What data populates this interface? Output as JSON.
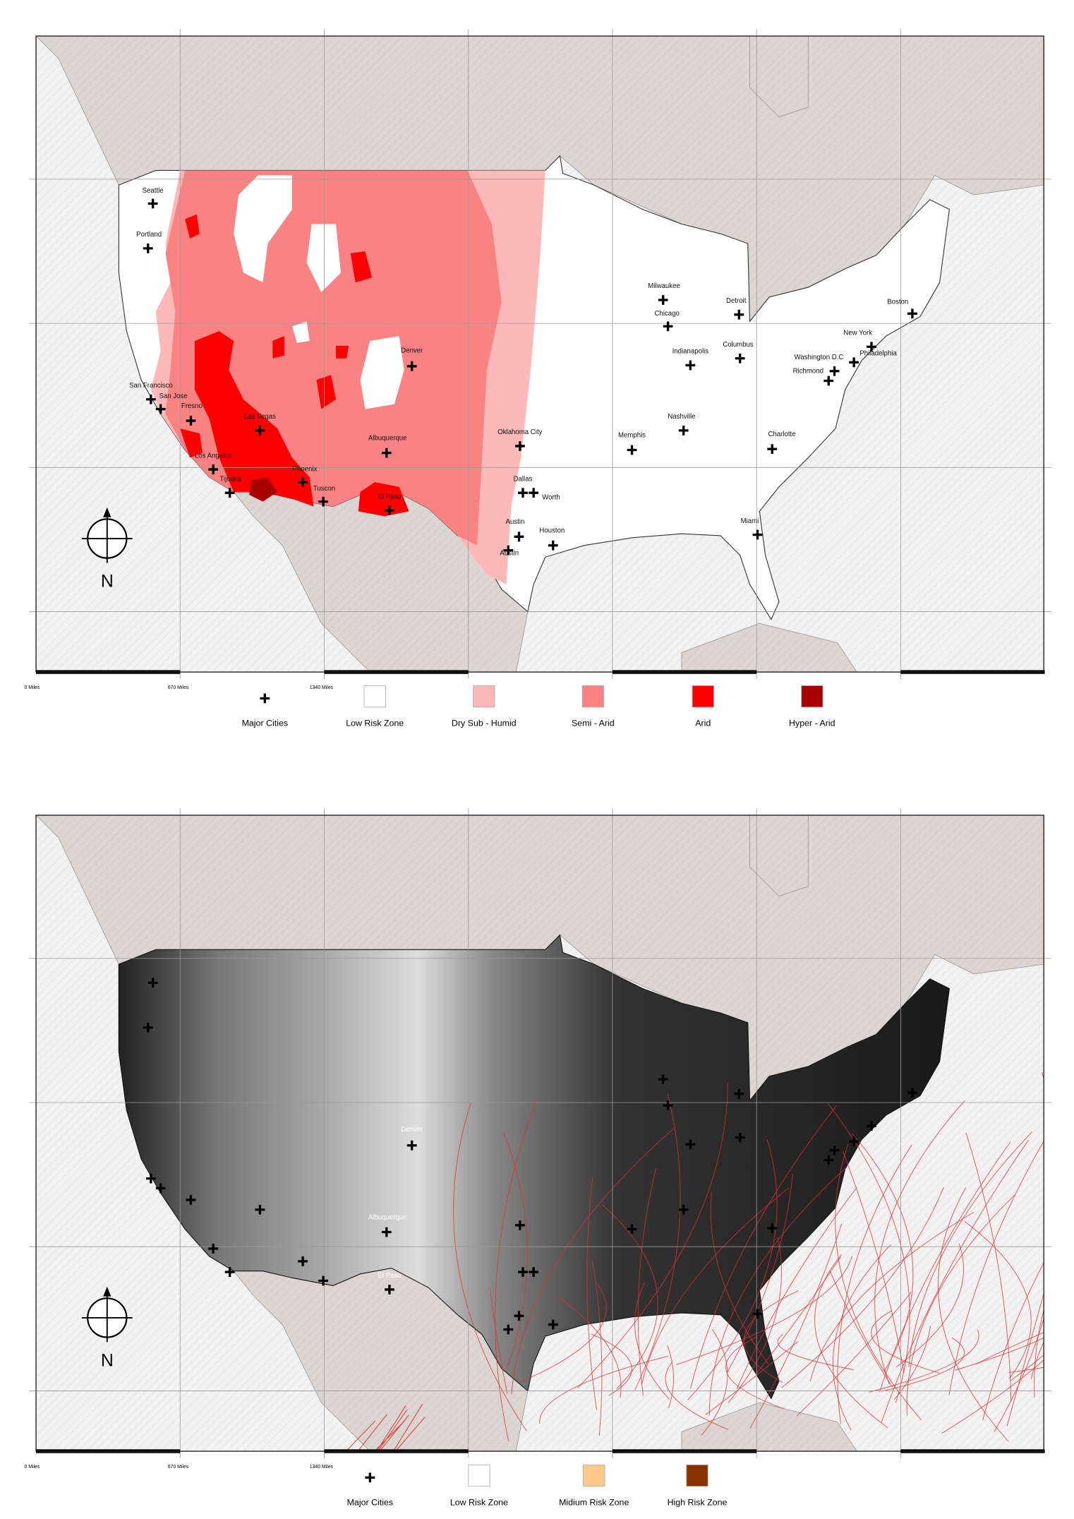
{
  "maps": [
    {
      "cities": [
        "Seattle",
        "Portland",
        "San Francisco",
        "San Jose",
        "Fresno",
        "Las Vegas",
        "Los Angeles",
        "Tijuana",
        "Phoenix",
        "Tuscon",
        "El Paso",
        "Albuquerque",
        "Denver",
        "Oklahoma City",
        "Dallas",
        "Worth",
        "Austin",
        "Austin",
        "Houston",
        "Memphis",
        "Nashville",
        "Milwaukee",
        "Chicago",
        "Indianapolis",
        "Detroit",
        "Columbus",
        "Charlotte",
        "Miami",
        "Washington D.C",
        "Richmond",
        "Philadelphia",
        "New York",
        "Boston"
      ],
      "scale": [
        "0 Miles",
        "670 Miles",
        "1340 Miles"
      ],
      "north": "N",
      "legend": [
        "Major Cities",
        "Low Risk Zone",
        "Dry Sub - Humid",
        "Semi - Arid",
        "Arid",
        "Hyper - Arid"
      ]
    },
    {
      "cities": [
        "Denver",
        "Albuquerque",
        "El Paso"
      ],
      "scale": [
        "0 Miles",
        "670 Miles",
        "1340 Miles"
      ],
      "north": "N",
      "legend": [
        "Major Cities",
        "Low Risk Zone",
        "Midium Risk Zone",
        "High Risk Zone"
      ]
    }
  ]
}
